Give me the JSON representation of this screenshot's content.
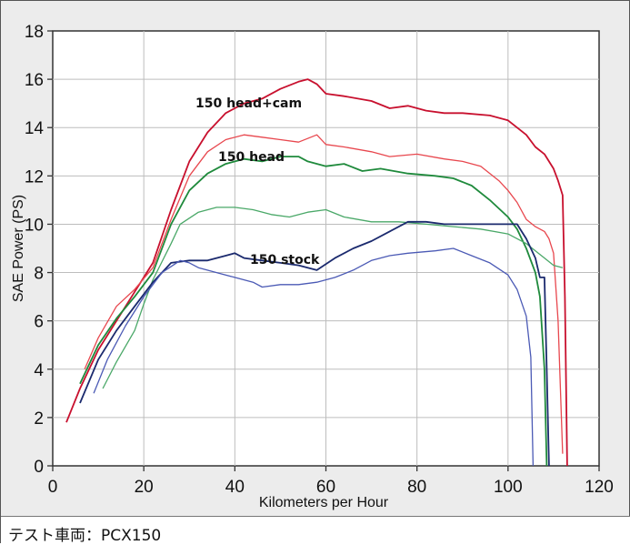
{
  "caption": "テスト車両：PCX150",
  "chart_data": {
    "type": "line",
    "xlabel": "Kilometers per Hour",
    "ylabel": "SAE Power (PS)",
    "xlim": [
      0,
      120
    ],
    "ylim": [
      0,
      18
    ],
    "x_ticks": [
      "0",
      "20",
      "40",
      "60",
      "80",
      "100",
      "120"
    ],
    "y_ticks": [
      "0",
      "2",
      "4",
      "6",
      "8",
      "10",
      "12",
      "14",
      "16",
      "18"
    ],
    "grid": true,
    "series": [
      {
        "label": "150 head+cam",
        "color": "#c8102e",
        "width": 1.8,
        "points": [
          [
            3,
            1.8
          ],
          [
            6,
            3.2
          ],
          [
            10,
            4.8
          ],
          [
            14,
            6.0
          ],
          [
            18,
            7.2
          ],
          [
            22,
            8.4
          ],
          [
            26,
            10.6
          ],
          [
            30,
            12.6
          ],
          [
            34,
            13.8
          ],
          [
            38,
            14.6
          ],
          [
            42,
            15.0
          ],
          [
            46,
            15.2
          ],
          [
            50,
            15.6
          ],
          [
            54,
            15.9
          ],
          [
            56,
            16.0
          ],
          [
            58,
            15.8
          ],
          [
            60,
            15.4
          ],
          [
            64,
            15.3
          ],
          [
            70,
            15.1
          ],
          [
            74,
            14.8
          ],
          [
            78,
            14.9
          ],
          [
            82,
            14.7
          ],
          [
            86,
            14.6
          ],
          [
            90,
            14.6
          ],
          [
            96,
            14.5
          ],
          [
            100,
            14.3
          ],
          [
            104,
            13.7
          ],
          [
            106,
            13.2
          ],
          [
            108,
            12.9
          ],
          [
            109,
            12.6
          ],
          [
            110,
            12.3
          ],
          [
            111,
            11.8
          ],
          [
            112,
            11.2
          ],
          [
            112.5,
            7.0
          ],
          [
            113,
            0
          ]
        ]
      },
      {
        "label": "",
        "color": "#e8474e",
        "width": 1.3,
        "points": [
          [
            7,
            4.0
          ],
          [
            10,
            5.3
          ],
          [
            14,
            6.6
          ],
          [
            18,
            7.3
          ],
          [
            22,
            8.2
          ],
          [
            26,
            10.2
          ],
          [
            30,
            12.0
          ],
          [
            34,
            13.0
          ],
          [
            38,
            13.5
          ],
          [
            42,
            13.7
          ],
          [
            46,
            13.6
          ],
          [
            50,
            13.5
          ],
          [
            54,
            13.4
          ],
          [
            58,
            13.7
          ],
          [
            60,
            13.3
          ],
          [
            64,
            13.2
          ],
          [
            70,
            13.0
          ],
          [
            74,
            12.8
          ],
          [
            80,
            12.9
          ],
          [
            86,
            12.7
          ],
          [
            90,
            12.6
          ],
          [
            94,
            12.4
          ],
          [
            98,
            11.8
          ],
          [
            100,
            11.4
          ],
          [
            102,
            10.9
          ],
          [
            104,
            10.2
          ],
          [
            106,
            9.9
          ],
          [
            108,
            9.7
          ],
          [
            109,
            9.4
          ],
          [
            110,
            8.8
          ],
          [
            111,
            6.0
          ],
          [
            112,
            0.5
          ]
        ]
      },
      {
        "label": "150 head",
        "color": "#1f8a3c",
        "width": 1.8,
        "points": [
          [
            6,
            3.4
          ],
          [
            10,
            5.0
          ],
          [
            14,
            6.1
          ],
          [
            18,
            7.0
          ],
          [
            22,
            8.0
          ],
          [
            26,
            10.0
          ],
          [
            30,
            11.4
          ],
          [
            34,
            12.1
          ],
          [
            38,
            12.5
          ],
          [
            42,
            12.7
          ],
          [
            46,
            12.6
          ],
          [
            50,
            12.8
          ],
          [
            54,
            12.8
          ],
          [
            56,
            12.6
          ],
          [
            60,
            12.4
          ],
          [
            64,
            12.5
          ],
          [
            68,
            12.2
          ],
          [
            72,
            12.3
          ],
          [
            78,
            12.1
          ],
          [
            84,
            12.0
          ],
          [
            88,
            11.9
          ],
          [
            92,
            11.6
          ],
          [
            96,
            11.0
          ],
          [
            100,
            10.3
          ],
          [
            102,
            9.8
          ],
          [
            104,
            9.0
          ],
          [
            106,
            8.0
          ],
          [
            107,
            7.0
          ],
          [
            108,
            4.0
          ],
          [
            108.5,
            0
          ]
        ]
      },
      {
        "label": "",
        "color": "#4aa868",
        "width": 1.3,
        "points": [
          [
            11,
            3.2
          ],
          [
            14,
            4.3
          ],
          [
            18,
            5.6
          ],
          [
            20,
            6.7
          ],
          [
            22,
            7.7
          ],
          [
            26,
            9.2
          ],
          [
            28,
            10.0
          ],
          [
            32,
            10.5
          ],
          [
            36,
            10.7
          ],
          [
            40,
            10.7
          ],
          [
            44,
            10.6
          ],
          [
            48,
            10.4
          ],
          [
            52,
            10.3
          ],
          [
            56,
            10.5
          ],
          [
            60,
            10.6
          ],
          [
            64,
            10.3
          ],
          [
            70,
            10.1
          ],
          [
            76,
            10.1
          ],
          [
            82,
            10.0
          ],
          [
            88,
            9.9
          ],
          [
            94,
            9.8
          ],
          [
            100,
            9.6
          ],
          [
            104,
            9.2
          ],
          [
            108,
            8.6
          ],
          [
            110,
            8.3
          ],
          [
            112,
            8.2
          ]
        ]
      },
      {
        "label": "150 stock",
        "color": "#1b2a6e",
        "width": 1.8,
        "points": [
          [
            6,
            2.6
          ],
          [
            10,
            4.4
          ],
          [
            14,
            5.6
          ],
          [
            18,
            6.6
          ],
          [
            22,
            7.6
          ],
          [
            26,
            8.4
          ],
          [
            30,
            8.5
          ],
          [
            34,
            8.5
          ],
          [
            38,
            8.7
          ],
          [
            40,
            8.8
          ],
          [
            42,
            8.6
          ],
          [
            46,
            8.5
          ],
          [
            50,
            8.4
          ],
          [
            54,
            8.3
          ],
          [
            58,
            8.1
          ],
          [
            62,
            8.6
          ],
          [
            66,
            9.0
          ],
          [
            70,
            9.3
          ],
          [
            74,
            9.7
          ],
          [
            78,
            10.1
          ],
          [
            82,
            10.1
          ],
          [
            86,
            10.0
          ],
          [
            90,
            10.0
          ],
          [
            94,
            10.0
          ],
          [
            98,
            10.0
          ],
          [
            102,
            10.0
          ],
          [
            104,
            9.4
          ],
          [
            106,
            8.6
          ],
          [
            107,
            7.8
          ],
          [
            108,
            7.8
          ],
          [
            108.5,
            4.0
          ],
          [
            109,
            0
          ]
        ]
      },
      {
        "label": "",
        "color": "#4b5ab5",
        "width": 1.3,
        "points": [
          [
            9,
            3.0
          ],
          [
            12,
            4.4
          ],
          [
            16,
            5.8
          ],
          [
            20,
            7.0
          ],
          [
            24,
            8.0
          ],
          [
            28,
            8.5
          ],
          [
            30,
            8.4
          ],
          [
            32,
            8.2
          ],
          [
            36,
            8.0
          ],
          [
            40,
            7.8
          ],
          [
            44,
            7.6
          ],
          [
            46,
            7.4
          ],
          [
            50,
            7.5
          ],
          [
            54,
            7.5
          ],
          [
            58,
            7.6
          ],
          [
            62,
            7.8
          ],
          [
            66,
            8.1
          ],
          [
            70,
            8.5
          ],
          [
            74,
            8.7
          ],
          [
            78,
            8.8
          ],
          [
            84,
            8.9
          ],
          [
            88,
            9.0
          ],
          [
            92,
            8.7
          ],
          [
            96,
            8.4
          ],
          [
            100,
            7.9
          ],
          [
            102,
            7.3
          ],
          [
            104,
            6.2
          ],
          [
            105,
            4.5
          ],
          [
            105.5,
            0
          ]
        ]
      }
    ]
  }
}
